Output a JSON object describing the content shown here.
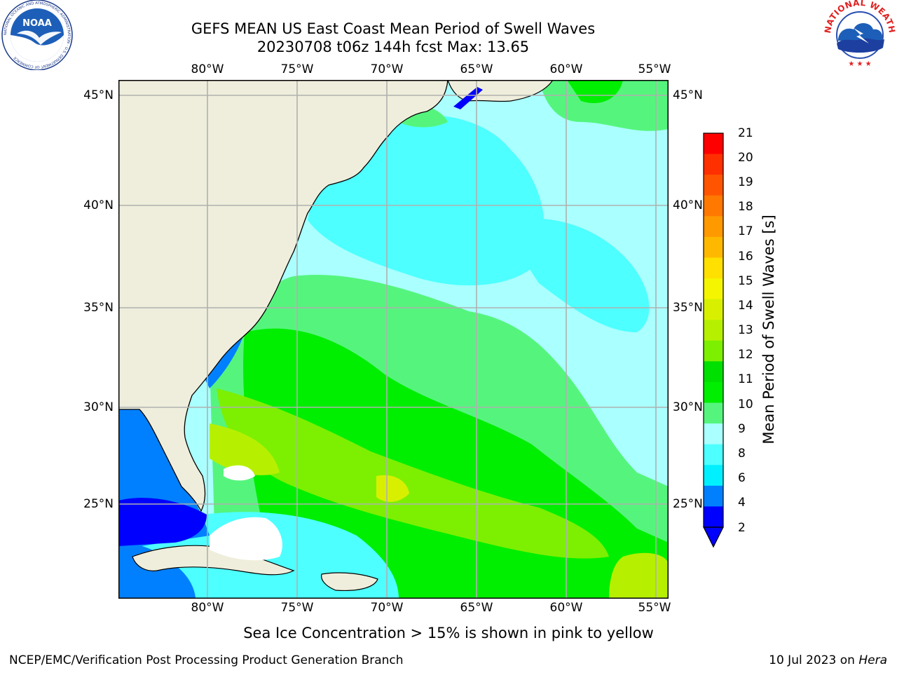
{
  "header": {
    "title_line1": "GEFS MEAN US East Coast Mean Period of Swell Waves",
    "title_line2": "20230708 t06z 144h fcst   Max: 13.65"
  },
  "logos": {
    "left": "NOAA",
    "left_ring_text": "NATIONAL OCEANIC AND ATMOSPHERIC ADMINISTRATION · U.S. DEPARTMENT OF COMMERCE",
    "right_ring_text": "NATIONAL WEATHER SERVICE"
  },
  "map": {
    "lon_labels": [
      "80°W",
      "75°W",
      "70°W",
      "65°W",
      "60°W",
      "55°W"
    ],
    "lat_labels": [
      "45°N",
      "40°N",
      "35°N",
      "30°N",
      "25°N"
    ],
    "lon_range": [
      -85,
      -54.5
    ],
    "lat_range": [
      20.5,
      45.8
    ],
    "colors": {
      "land": "#efeedc",
      "grid": "#b0b0b0",
      "white_mask": "#ffffff"
    }
  },
  "colorbar": {
    "title": "Mean Period of Swell Waves [s]",
    "tick_labels": [
      "21",
      "20",
      "19",
      "18",
      "17",
      "16",
      "15",
      "14",
      "13",
      "12",
      "11",
      "10",
      "9",
      "8",
      "6",
      "4",
      "2"
    ],
    "colors_top_to_bottom": [
      "#ff0000",
      "#ff3000",
      "#ff5500",
      "#ff7800",
      "#ff9900",
      "#ffb800",
      "#ffe000",
      "#f5f500",
      "#d8f000",
      "#b6f000",
      "#7cf000",
      "#00e000",
      "#00ee00",
      "#55f57d",
      "#aaffff",
      "#4dffff",
      "#00f0ff",
      "#0080ff",
      "#0000ff"
    ]
  },
  "subtitle": "Sea Ice Concentration > 15% is shown in pink to yellow",
  "footer": {
    "left": "NCEP/EMC/Verification Post Processing Product Generation Branch",
    "right_date": "10 Jul 2023 on ",
    "right_host": "Hera"
  }
}
